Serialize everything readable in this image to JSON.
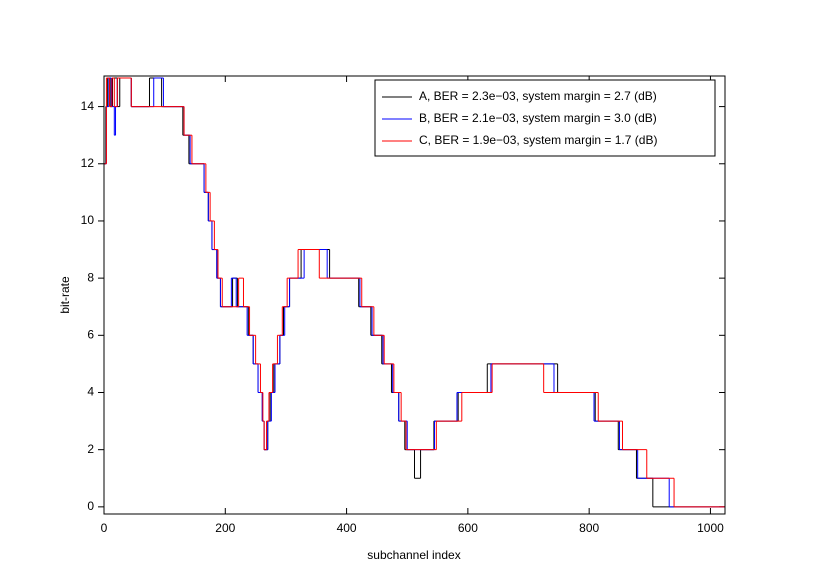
{
  "chart_data": {
    "type": "step",
    "xlabel": "subchannel index",
    "ylabel": "bit-rate",
    "xlim": [
      0,
      1024
    ],
    "ylim": [
      -0.25,
      15.07
    ],
    "xticks": [
      0,
      200,
      400,
      600,
      800,
      1000
    ],
    "yticks": [
      0,
      2,
      4,
      6,
      8,
      10,
      12,
      14
    ],
    "legend": "upper right",
    "series": [
      {
        "name": "A, BER = 2.3e−03, system margin = 2.7 (dB)",
        "color": "#000000",
        "x": [
          0,
          3,
          6,
          10,
          14,
          22,
          26,
          45,
          75,
          95,
          130,
          140,
          165,
          172,
          178,
          186,
          192,
          212,
          220,
          238,
          246,
          254,
          261,
          264,
          270,
          274,
          280,
          290,
          296,
          306,
          325,
          372,
          420,
          440,
          458,
          474,
          486,
          496,
          512,
          522,
          544,
          584,
          632,
          748,
          810,
          848,
          878,
          905
        ],
        "values": [
          12,
          14,
          15,
          14,
          15,
          14,
          15,
          14,
          15,
          14,
          13,
          12,
          11,
          10,
          9,
          8,
          7,
          8,
          7,
          6,
          5,
          4,
          3,
          2,
          3,
          4,
          5,
          6,
          7,
          8,
          9,
          8,
          7,
          6,
          5,
          4,
          3,
          2,
          1,
          2,
          3,
          4,
          5,
          4,
          3,
          2,
          1,
          0
        ]
      },
      {
        "name": "B, BER = 2.1e−03, system margin = 3.0 (dB)",
        "color": "#0000ff",
        "x": [
          0,
          4,
          8,
          12,
          17,
          19,
          22,
          45,
          82,
          98,
          132,
          142,
          165,
          172,
          178,
          186,
          192,
          210,
          218,
          236,
          246,
          254,
          261,
          264,
          270,
          276,
          282,
          290,
          298,
          306,
          330,
          368,
          422,
          442,
          460,
          476,
          486,
          500,
          545,
          582,
          638,
          742,
          808,
          850,
          880,
          932
        ],
        "values": [
          12,
          14,
          15,
          14,
          13,
          14,
          15,
          14,
          15,
          14,
          13,
          12,
          11,
          10,
          9,
          8,
          7,
          8,
          7,
          6,
          5,
          4,
          3,
          2,
          3,
          4,
          5,
          6,
          7,
          8,
          9,
          8,
          7,
          6,
          5,
          4,
          3,
          2,
          3,
          4,
          5,
          4,
          3,
          2,
          1,
          0
        ]
      },
      {
        "name": "C, BER = 1.9e−03, system margin = 1.7 (dB)",
        "color": "#ff0000",
        "x": [
          0,
          4,
          9,
          13,
          17,
          22,
          45,
          132,
          145,
          168,
          175,
          182,
          188,
          195,
          222,
          230,
          240,
          250,
          258,
          262,
          264,
          268,
          272,
          278,
          286,
          294,
          302,
          320,
          355,
          425,
          445,
          462,
          478,
          490,
          498,
          548,
          590,
          640,
          725,
          815,
          855,
          895,
          940
        ],
        "values": [
          12,
          15,
          14,
          15,
          14,
          15,
          14,
          13,
          12,
          11,
          10,
          9,
          8,
          7,
          8,
          7,
          6,
          5,
          4,
          3,
          2,
          3,
          4,
          5,
          6,
          7,
          8,
          9,
          8,
          7,
          6,
          5,
          4,
          3,
          2,
          3,
          4,
          5,
          4,
          3,
          2,
          1,
          0
        ]
      }
    ]
  }
}
